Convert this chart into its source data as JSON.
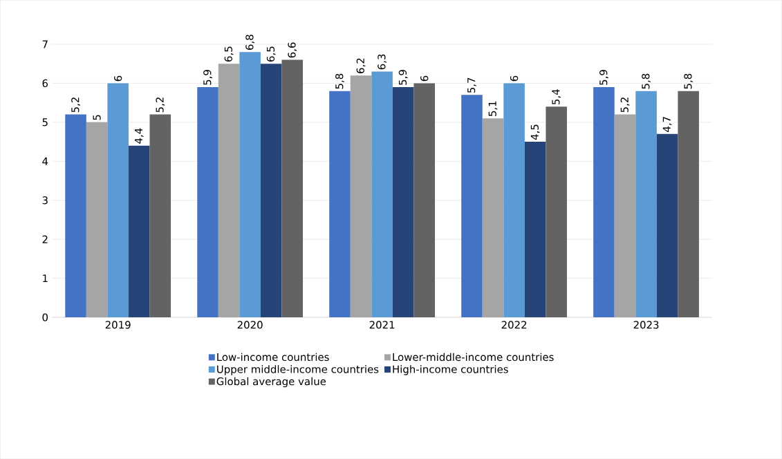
{
  "chart_data": {
    "type": "bar",
    "categories": [
      "2019",
      "2020",
      "2021",
      "2022",
      "2023"
    ],
    "series": [
      {
        "name": "Low-income countries",
        "color": "#4472c4",
        "values": [
          5.2,
          5.9,
          5.8,
          5.7,
          5.9
        ],
        "value_labels": [
          "5,2",
          "5,9",
          "5,8",
          "5,7",
          "5,9"
        ]
      },
      {
        "name": "Lower-middle-income countries",
        "color": "#a5a5a5",
        "values": [
          5,
          6.5,
          6.2,
          5.1,
          5.2
        ],
        "value_labels": [
          "5",
          "6,5",
          "6,2",
          "5,1",
          "5,2"
        ]
      },
      {
        "name": "Upper middle-income countries",
        "color": "#5b9bd5",
        "values": [
          6,
          6.8,
          6.3,
          6,
          5.8
        ],
        "value_labels": [
          "6",
          "6,8",
          "6,3",
          "6",
          "5,8"
        ]
      },
      {
        "name": "High-income countries",
        "color": "#264478",
        "values": [
          4.4,
          6.5,
          5.9,
          4.5,
          4.7
        ],
        "value_labels": [
          "4,4",
          "6,5",
          "5,9",
          "4,5",
          "4,7"
        ]
      },
      {
        "name": "Global average value",
        "color": "#636363",
        "values": [
          5.2,
          6.6,
          6,
          5.4,
          5.8
        ],
        "value_labels": [
          "5,2",
          "6,6",
          "6",
          "5,4",
          "5,8"
        ]
      }
    ],
    "ylim": [
      0,
      7
    ],
    "yticks": [
      0,
      1,
      2,
      3,
      4,
      5,
      6,
      7
    ],
    "grid": "y",
    "legend": "bottom"
  }
}
